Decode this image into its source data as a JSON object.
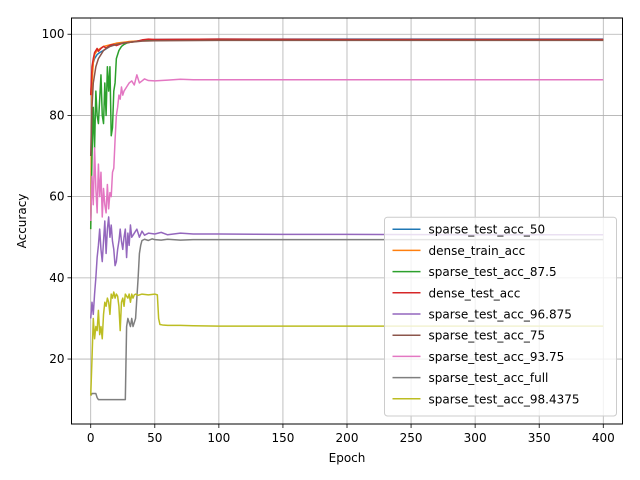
{
  "chart_data": {
    "type": "line",
    "title": "",
    "xlabel": "Epoch",
    "ylabel": "Accuracy",
    "xlim": [
      -15,
      415
    ],
    "ylim": [
      4,
      104
    ],
    "xticks": [
      0,
      50,
      100,
      150,
      200,
      250,
      300,
      350,
      400
    ],
    "yticks": [
      20,
      40,
      60,
      80,
      100
    ],
    "grid": true,
    "legend_position": "lower-right",
    "series": [
      {
        "name": "sparse_test_acc_50",
        "color": "#1f77b4",
        "points": [
          [
            0,
            85
          ],
          [
            1,
            90
          ],
          [
            2,
            93
          ],
          [
            3,
            94
          ],
          [
            5,
            95
          ],
          [
            7,
            95.5
          ],
          [
            10,
            96
          ],
          [
            15,
            97
          ],
          [
            20,
            97.5
          ],
          [
            30,
            98
          ],
          [
            40,
            98.5
          ],
          [
            50,
            98.7
          ],
          [
            100,
            98.8
          ],
          [
            200,
            98.8
          ],
          [
            300,
            98.8
          ],
          [
            400,
            98.8
          ]
        ]
      },
      {
        "name": "dense_train_acc",
        "color": "#ff7f0e",
        "points": [
          [
            0,
            52
          ],
          [
            1,
            88
          ],
          [
            2,
            93
          ],
          [
            3,
            95
          ],
          [
            5,
            96
          ],
          [
            10,
            97
          ],
          [
            20,
            97.8
          ],
          [
            30,
            98.2
          ],
          [
            40,
            98.4
          ],
          [
            50,
            98.5
          ],
          [
            100,
            98.6
          ],
          [
            200,
            98.6
          ],
          [
            300,
            98.6
          ],
          [
            400,
            98.6
          ]
        ]
      },
      {
        "name": "sparse_test_acc_87.5",
        "color": "#2ca02c",
        "points": [
          [
            0,
            52
          ],
          [
            1,
            70
          ],
          [
            2,
            82
          ],
          [
            3,
            72
          ],
          [
            4,
            86
          ],
          [
            5,
            80
          ],
          [
            6,
            78
          ],
          [
            7,
            84
          ],
          [
            8,
            90
          ],
          [
            9,
            80
          ],
          [
            10,
            78
          ],
          [
            11,
            88
          ],
          [
            12,
            80
          ],
          [
            13,
            92
          ],
          [
            14,
            86
          ],
          [
            15,
            92
          ],
          [
            16,
            75
          ],
          [
            17,
            77
          ],
          [
            18,
            86
          ],
          [
            19,
            88
          ],
          [
            20,
            94
          ],
          [
            22,
            96
          ],
          [
            24,
            97
          ],
          [
            26,
            97.5
          ],
          [
            28,
            97.8
          ],
          [
            30,
            98
          ],
          [
            35,
            98.2
          ],
          [
            40,
            98.4
          ],
          [
            50,
            98.5
          ],
          [
            100,
            98.6
          ],
          [
            200,
            98.6
          ],
          [
            300,
            98.6
          ],
          [
            400,
            98.6
          ]
        ]
      },
      {
        "name": "dense_test_acc",
        "color": "#d62728",
        "points": [
          [
            0,
            85
          ],
          [
            1,
            92
          ],
          [
            2,
            94
          ],
          [
            3,
            95.5
          ],
          [
            4,
            96
          ],
          [
            5,
            96.5
          ],
          [
            6,
            95.8
          ],
          [
            8,
            96.5
          ],
          [
            10,
            97
          ],
          [
            12,
            96.6
          ],
          [
            15,
            97.3
          ],
          [
            18,
            97.5
          ],
          [
            20,
            97.2
          ],
          [
            25,
            97.8
          ],
          [
            30,
            98
          ],
          [
            35,
            98.2
          ],
          [
            40,
            98.6
          ],
          [
            45,
            98.8
          ],
          [
            50,
            98.7
          ],
          [
            100,
            98.8
          ],
          [
            200,
            98.7
          ],
          [
            300,
            98.7
          ],
          [
            400,
            98.7
          ]
        ]
      },
      {
        "name": "sparse_test_acc_96.875",
        "color": "#9467bd",
        "points": [
          [
            0,
            30
          ],
          [
            1,
            34
          ],
          [
            2,
            31
          ],
          [
            3,
            36
          ],
          [
            4,
            40
          ],
          [
            5,
            45
          ],
          [
            6,
            48
          ],
          [
            7,
            52
          ],
          [
            8,
            47
          ],
          [
            9,
            44
          ],
          [
            10,
            49
          ],
          [
            11,
            54
          ],
          [
            12,
            46
          ],
          [
            13,
            52
          ],
          [
            14,
            55
          ],
          [
            15,
            50
          ],
          [
            16,
            53
          ],
          [
            17,
            49
          ],
          [
            18,
            47
          ],
          [
            19,
            43
          ],
          [
            20,
            44
          ],
          [
            21,
            47
          ],
          [
            22,
            49
          ],
          [
            23,
            52
          ],
          [
            24,
            49
          ],
          [
            25,
            47
          ],
          [
            26,
            50
          ],
          [
            27,
            52
          ],
          [
            28,
            45
          ],
          [
            29,
            51
          ],
          [
            30,
            48
          ],
          [
            31,
            53
          ],
          [
            32,
            50
          ],
          [
            34,
            51
          ],
          [
            36,
            52
          ],
          [
            38,
            50
          ],
          [
            40,
            51.5
          ],
          [
            42,
            50.5
          ],
          [
            45,
            51
          ],
          [
            50,
            50.8
          ],
          [
            55,
            51.2
          ],
          [
            60,
            50.6
          ],
          [
            70,
            51
          ],
          [
            80,
            50.8
          ],
          [
            100,
            50.8
          ],
          [
            150,
            50.7
          ],
          [
            200,
            50.7
          ],
          [
            300,
            50.6
          ],
          [
            400,
            50.6
          ]
        ]
      },
      {
        "name": "sparse_test_acc_75",
        "color": "#8c564b",
        "points": [
          [
            0,
            70
          ],
          [
            1,
            82
          ],
          [
            2,
            88
          ],
          [
            3,
            90
          ],
          [
            4,
            92
          ],
          [
            5,
            93
          ],
          [
            6,
            94
          ],
          [
            8,
            95
          ],
          [
            10,
            96
          ],
          [
            12,
            96.5
          ],
          [
            15,
            97
          ],
          [
            20,
            97.5
          ],
          [
            25,
            97.8
          ],
          [
            30,
            98
          ],
          [
            40,
            98.3
          ],
          [
            50,
            98.4
          ],
          [
            100,
            98.5
          ],
          [
            200,
            98.5
          ],
          [
            300,
            98.5
          ],
          [
            400,
            98.5
          ]
        ]
      },
      {
        "name": "sparse_test_acc_93.75",
        "color": "#e377c2",
        "points": [
          [
            0,
            54
          ],
          [
            1,
            65
          ],
          [
            2,
            58
          ],
          [
            3,
            72
          ],
          [
            4,
            62
          ],
          [
            5,
            56
          ],
          [
            6,
            68
          ],
          [
            7,
            60
          ],
          [
            8,
            66
          ],
          [
            9,
            55
          ],
          [
            10,
            62
          ],
          [
            11,
            58
          ],
          [
            12,
            56
          ],
          [
            13,
            63
          ],
          [
            14,
            57
          ],
          [
            15,
            61
          ],
          [
            16,
            60
          ],
          [
            17,
            66
          ],
          [
            18,
            67
          ],
          [
            19,
            74
          ],
          [
            20,
            80
          ],
          [
            21,
            82
          ],
          [
            22,
            85
          ],
          [
            23,
            84
          ],
          [
            24,
            87
          ],
          [
            25,
            85
          ],
          [
            26,
            86
          ],
          [
            28,
            87
          ],
          [
            30,
            88
          ],
          [
            32,
            88.5
          ],
          [
            34,
            87.5
          ],
          [
            36,
            90
          ],
          [
            38,
            88
          ],
          [
            40,
            88.5
          ],
          [
            42,
            89
          ],
          [
            45,
            88.6
          ],
          [
            50,
            88.5
          ],
          [
            60,
            88.7
          ],
          [
            70,
            88.9
          ],
          [
            80,
            88.8
          ],
          [
            100,
            88.8
          ],
          [
            200,
            88.8
          ],
          [
            300,
            88.8
          ],
          [
            400,
            88.8
          ]
        ]
      },
      {
        "name": "sparse_test_acc_full",
        "color": "#7f7f7f",
        "points": [
          [
            0,
            11
          ],
          [
            1,
            11.5
          ],
          [
            2,
            11.5
          ],
          [
            3,
            11.5
          ],
          [
            4,
            11.5
          ],
          [
            5,
            10.5
          ],
          [
            6,
            10
          ],
          [
            8,
            10
          ],
          [
            10,
            10
          ],
          [
            15,
            10
          ],
          [
            20,
            10
          ],
          [
            25,
            10
          ],
          [
            26,
            10
          ],
          [
            27,
            10
          ],
          [
            28,
            28
          ],
          [
            29,
            30
          ],
          [
            30,
            29
          ],
          [
            31,
            28
          ],
          [
            32,
            30
          ],
          [
            33,
            28
          ],
          [
            34,
            29
          ],
          [
            35,
            30
          ],
          [
            36,
            35
          ],
          [
            37,
            40
          ],
          [
            38,
            46
          ],
          [
            39,
            48
          ],
          [
            40,
            49.2
          ],
          [
            42,
            49.5
          ],
          [
            45,
            49.2
          ],
          [
            48,
            49.6
          ],
          [
            50,
            49.4
          ],
          [
            55,
            49.3
          ],
          [
            60,
            49.5
          ],
          [
            70,
            49.3
          ],
          [
            80,
            49.4
          ],
          [
            100,
            49.4
          ],
          [
            200,
            49.4
          ],
          [
            300,
            49.4
          ],
          [
            400,
            49.4
          ]
        ]
      },
      {
        "name": "sparse_test_acc_98.4375",
        "color": "#bcbd22",
        "points": [
          [
            0,
            11
          ],
          [
            1,
            20
          ],
          [
            2,
            30
          ],
          [
            3,
            25
          ],
          [
            4,
            28
          ],
          [
            5,
            27
          ],
          [
            6,
            32
          ],
          [
            7,
            26
          ],
          [
            8,
            28
          ],
          [
            9,
            25
          ],
          [
            10,
            31
          ],
          [
            11,
            34
          ],
          [
            12,
            33
          ],
          [
            13,
            35
          ],
          [
            14,
            34
          ],
          [
            15,
            31
          ],
          [
            16,
            36
          ],
          [
            17,
            35
          ],
          [
            18,
            36.5
          ],
          [
            19,
            35
          ],
          [
            20,
            36
          ],
          [
            21,
            35.5
          ],
          [
            22,
            33
          ],
          [
            23,
            27
          ],
          [
            24,
            34
          ],
          [
            25,
            35
          ],
          [
            26,
            33
          ],
          [
            27,
            36
          ],
          [
            28,
            35.5
          ],
          [
            29,
            35
          ],
          [
            30,
            36
          ],
          [
            31,
            34
          ],
          [
            32,
            36
          ],
          [
            33,
            35
          ],
          [
            34,
            35.8
          ],
          [
            35,
            36
          ],
          [
            37,
            35.7
          ],
          [
            40,
            36
          ],
          [
            45,
            35.8
          ],
          [
            50,
            36
          ],
          [
            52,
            35.8
          ],
          [
            53,
            30
          ],
          [
            54,
            28.5
          ],
          [
            56,
            28.4
          ],
          [
            60,
            28.3
          ],
          [
            70,
            28.3
          ],
          [
            80,
            28.2
          ],
          [
            100,
            28.1
          ],
          [
            150,
            28.1
          ],
          [
            200,
            28.1
          ],
          [
            300,
            28.1
          ],
          [
            400,
            28.1
          ]
        ]
      }
    ]
  }
}
